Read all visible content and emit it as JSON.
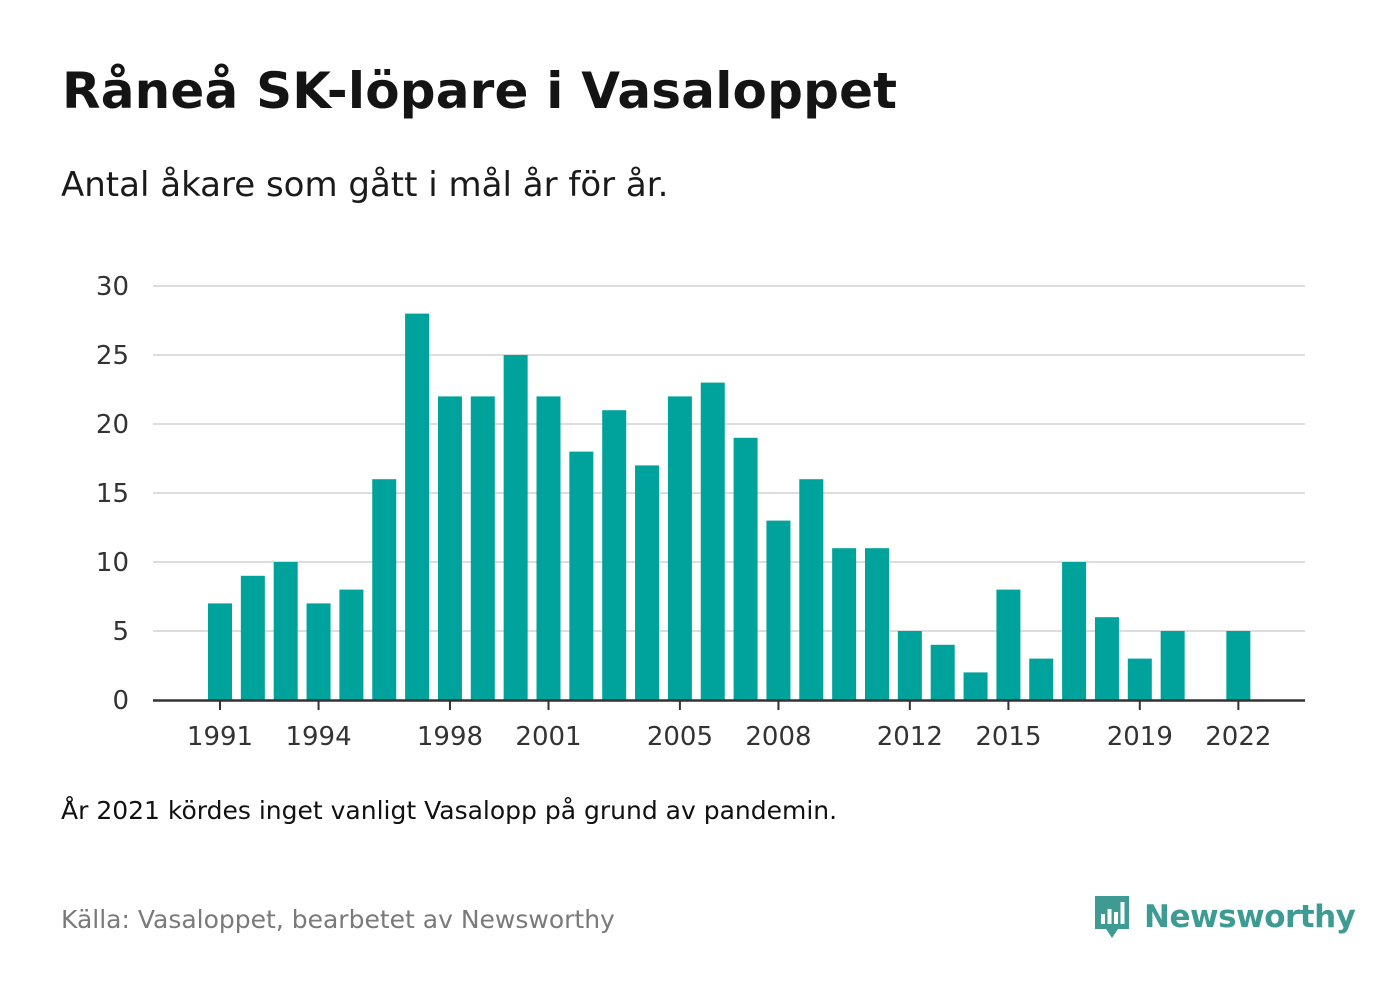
{
  "title": "Råneå SK-löpare i Vasaloppet",
  "subtitle": "Antal åkare som gått i mål år för år.",
  "note": "År 2021 kördes inget vanligt Vasalopp på grund av pandemin.",
  "source": "Källa: Vasaloppet, bearbetet av Newsworthy",
  "brand": {
    "name": "Newsworthy",
    "icon": "newsworthy-logo-icon",
    "color": "#3d9b94"
  },
  "colors": {
    "bar": "#00a39b",
    "grid": "#dddddd",
    "axis": "#333333"
  },
  "chart_data": {
    "type": "bar",
    "categories": [
      "1991",
      "1992",
      "1993",
      "1994",
      "1995",
      "1996",
      "1997",
      "1998",
      "1999",
      "2000",
      "2001",
      "2002",
      "2003",
      "2004",
      "2005",
      "2006",
      "2007",
      "2008",
      "2009",
      "2010",
      "2011",
      "2012",
      "2013",
      "2014",
      "2015",
      "2016",
      "2017",
      "2018",
      "2019",
      "2020",
      "2021",
      "2022"
    ],
    "values": [
      7,
      9,
      10,
      7,
      8,
      16,
      28,
      22,
      22,
      25,
      22,
      18,
      21,
      17,
      22,
      23,
      19,
      13,
      16,
      11,
      11,
      5,
      4,
      2,
      8,
      3,
      10,
      6,
      3,
      5,
      0,
      5
    ],
    "x_tick_labels": [
      "1991",
      "1994",
      "1998",
      "2001",
      "2005",
      "2008",
      "2012",
      "2015",
      "2019",
      "2022"
    ],
    "y_ticks": [
      0,
      5,
      10,
      15,
      20,
      25,
      30
    ],
    "ylim": [
      0,
      30
    ],
    "grid": true,
    "xlabel": "",
    "ylabel": ""
  }
}
